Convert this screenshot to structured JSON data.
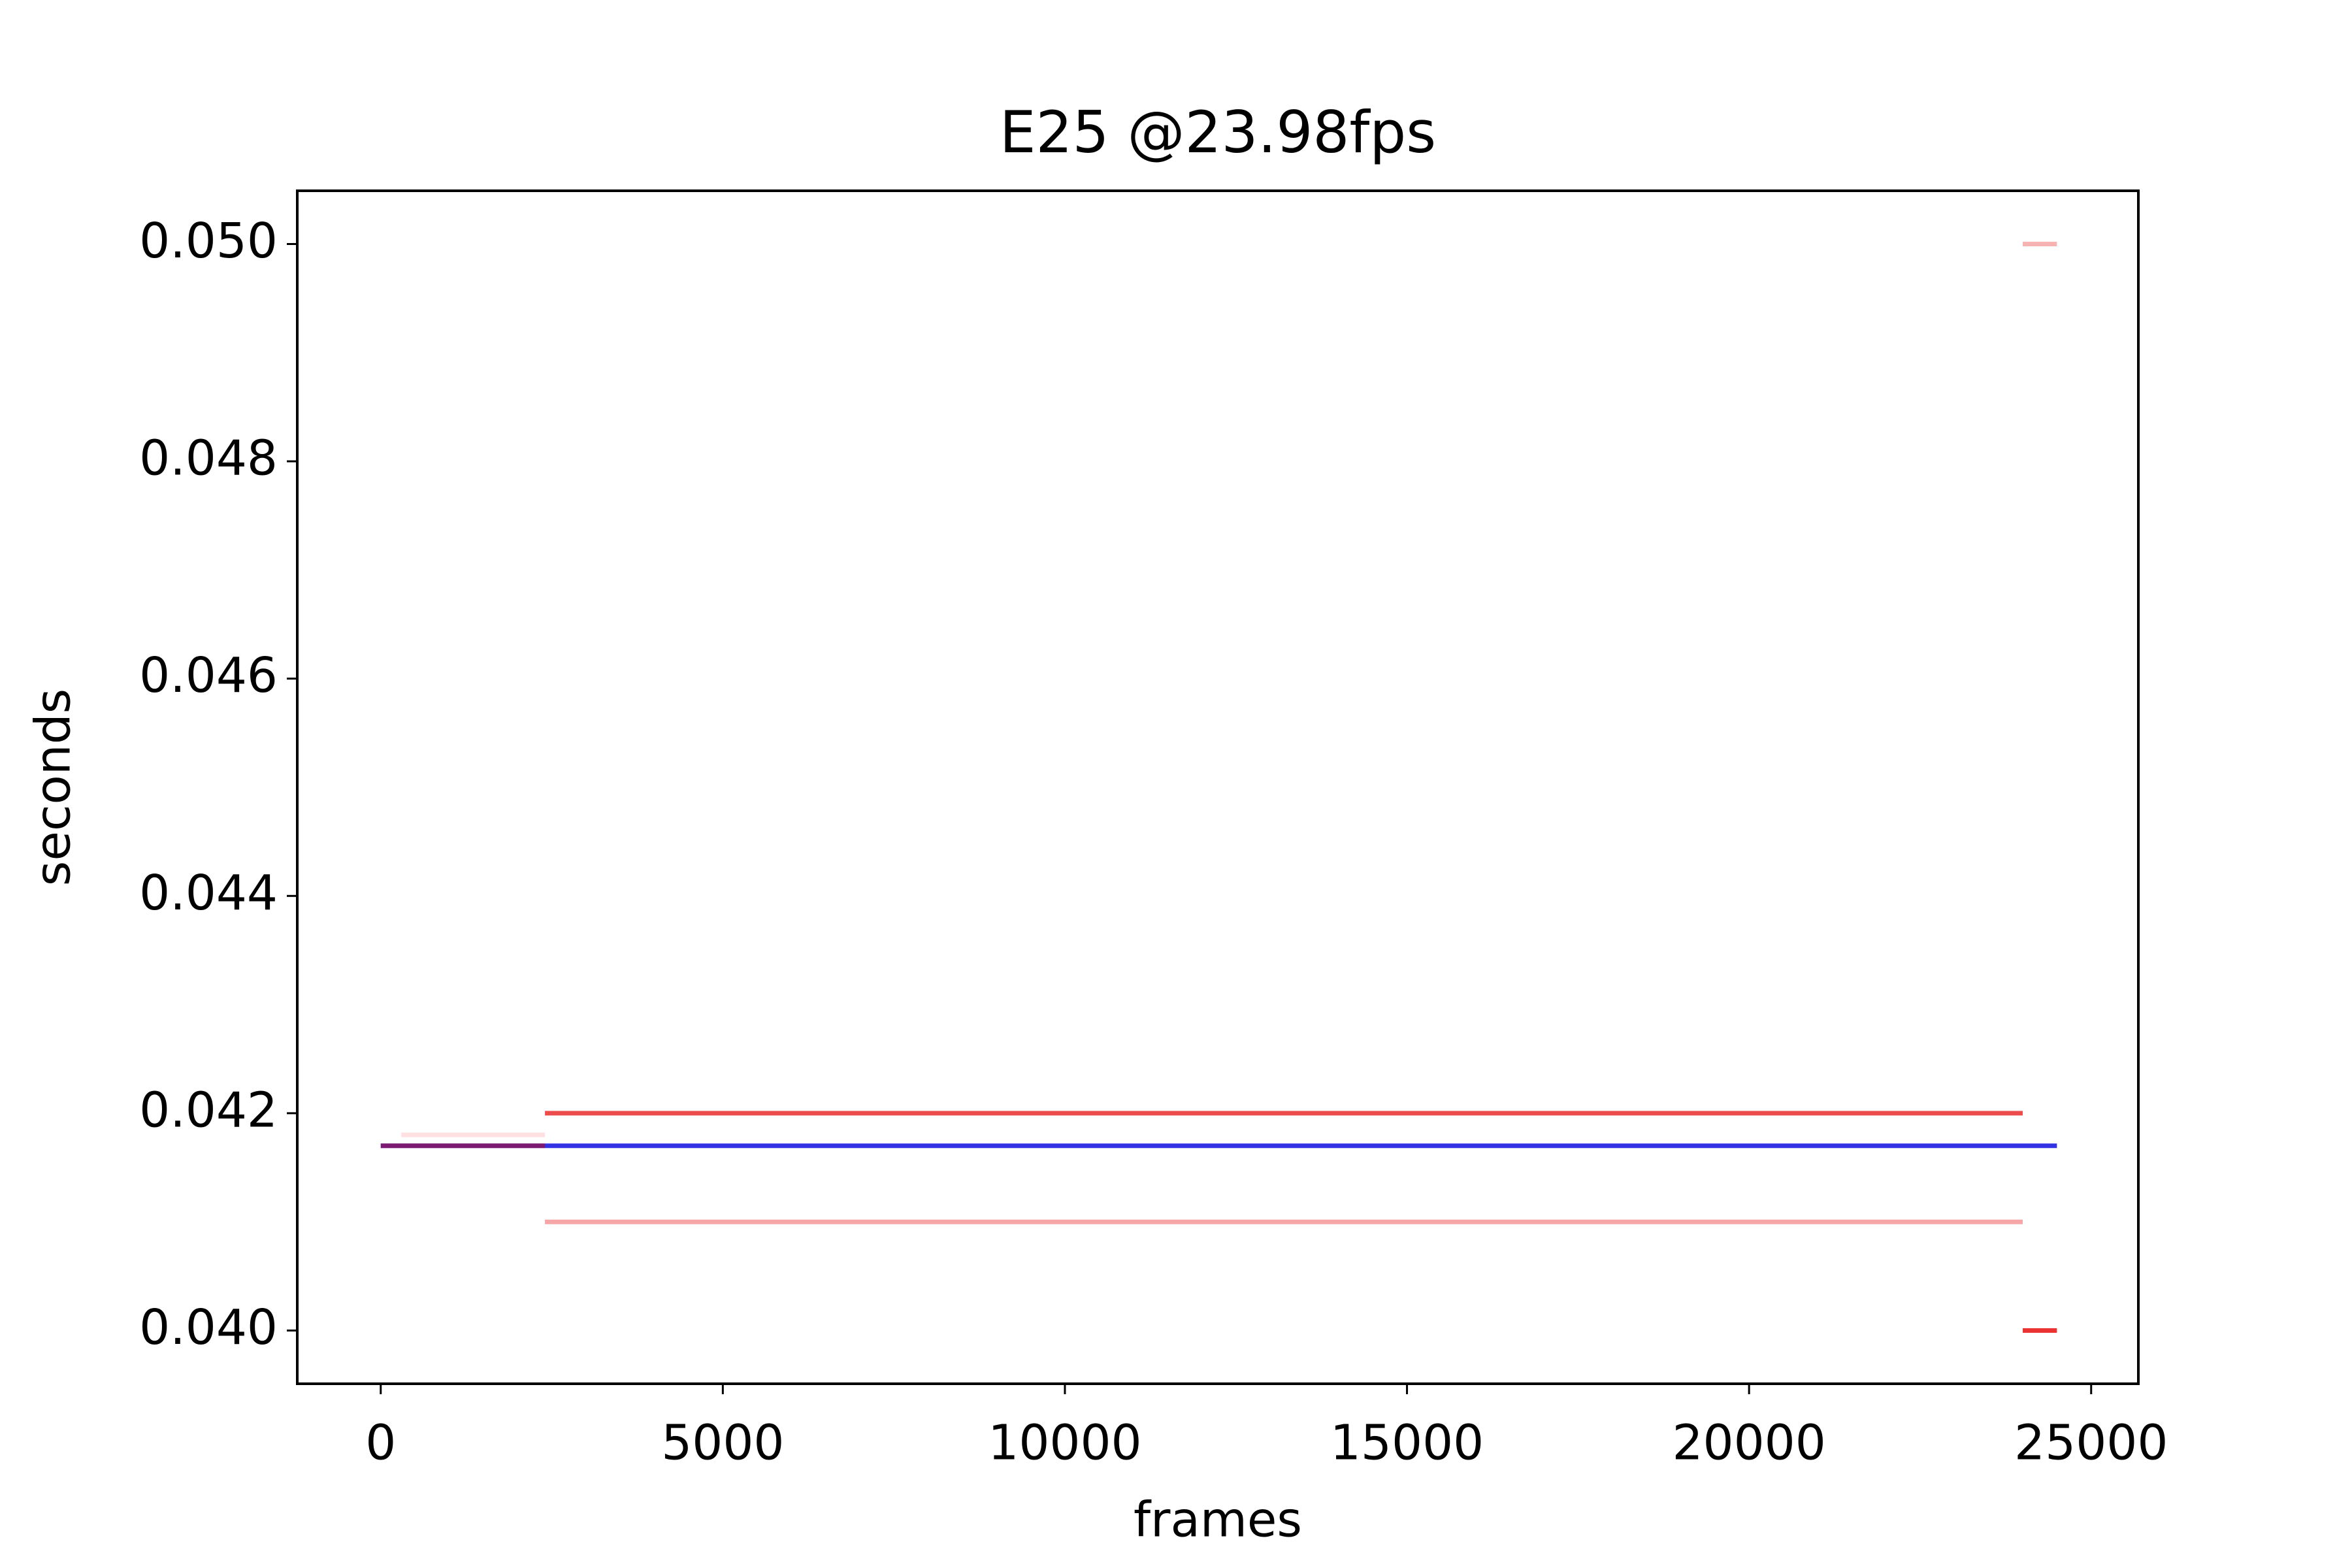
{
  "chart_data": {
    "type": "line",
    "title": "E25 @23.98fps",
    "xlabel": "frames",
    "ylabel": "seconds",
    "xlim": [
      -1220,
      25690
    ],
    "ylim": [
      0.03951,
      0.05049
    ],
    "xticks": [
      0,
      5000,
      10000,
      15000,
      20000,
      25000
    ],
    "yticks": [
      {
        "value": 0.04,
        "label": "0.040"
      },
      0.042,
      0.044,
      0.046,
      0.048,
      {
        "value": 0.05,
        "label": "0.050"
      }
    ],
    "series": [
      {
        "color": "rgba(255,0,0,0.12)",
        "x": [
          300,
          2400
        ],
        "values": [
          0.0418,
          0.0418
        ]
      },
      {
        "color": "rgba(230,0,0,0.7)",
        "x": [
          2400,
          24000
        ],
        "values": [
          0.042,
          0.042
        ]
      },
      {
        "color": "rgba(230,0,0,0.35)",
        "x": [
          2400,
          24000
        ],
        "values": [
          0.041,
          0.041
        ]
      },
      {
        "color": "rgba(230,0,0,0.3)",
        "x": [
          24000,
          24500
        ],
        "values": [
          0.05,
          0.05
        ]
      },
      {
        "color": "rgba(230,0,0,0.8)",
        "x": [
          24000,
          24500
        ],
        "values": [
          0.04,
          0.04
        ]
      },
      {
        "color": "rgba(0,0,220,0.8)",
        "x": [
          0,
          24500
        ],
        "values": [
          0.0417,
          0.0417
        ]
      },
      {
        "color": "rgba(200,0,0,0.5)",
        "x": [
          0,
          2400
        ],
        "values": [
          0.0417,
          0.0417
        ]
      }
    ]
  }
}
